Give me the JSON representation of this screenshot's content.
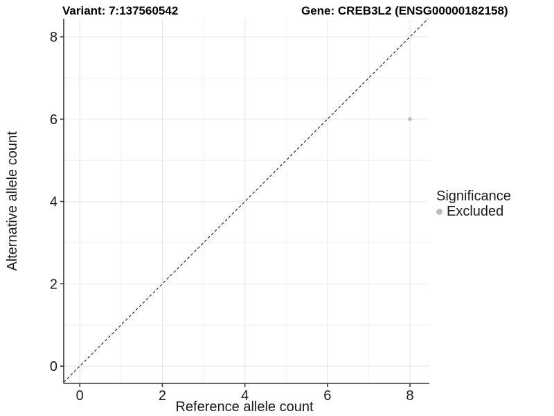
{
  "figure": {
    "title_left": "Variant: 7:137560542",
    "title_right": "Gene: CREB3L2 (ENSG00000182158)"
  },
  "chart_data": {
    "type": "scatter",
    "title_left": "Variant: 7:137560542",
    "title_right": "Gene: CREB3L2 (ENSG00000182158)",
    "xlabel": "Reference allele count",
    "ylabel": "Alternative allele count",
    "xlim": [
      -0.39,
      8.47
    ],
    "ylim": [
      -0.42,
      8.44
    ],
    "xticks": [
      0,
      2,
      4,
      6,
      8
    ],
    "yticks": [
      0,
      2,
      4,
      6,
      8
    ],
    "xticks_minor": [
      1,
      3,
      5,
      7
    ],
    "yticks_minor": [
      1,
      3,
      5,
      7
    ],
    "grid": true,
    "points": [
      {
        "x": 8,
        "y": 6,
        "series": "Excluded"
      }
    ],
    "identity_line": {
      "style": "dashed",
      "from": -0.39,
      "to": 8.44
    },
    "legend": {
      "position": "right",
      "title": "Significance",
      "entries": [
        {
          "label": "Excluded",
          "color": "#bdbdbd"
        }
      ]
    },
    "colors": {
      "point": "#bdbdbd",
      "grid_major": "#e6e6e6",
      "grid_minor": "#f1f1f1",
      "axis": "#333333",
      "tick_text": "#1a1a1a",
      "identity_line": "#000000"
    }
  }
}
